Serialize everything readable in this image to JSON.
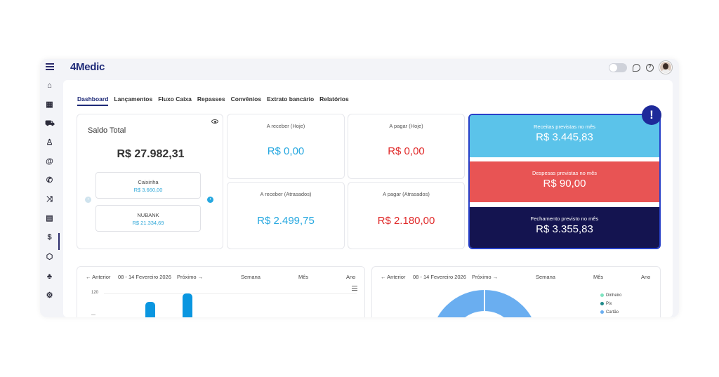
{
  "app": {
    "logo": "4Medic"
  },
  "header": {
    "help_label": "?",
    "chat_label": "…"
  },
  "sidebar": {
    "icons": [
      "home-icon",
      "calendar-icon",
      "car-icon",
      "user-icon",
      "at-icon",
      "phone-icon",
      "shuffle-icon",
      "clipboard-icon",
      "dollar-icon",
      "box-icon",
      "tree-icon",
      "gear-icon"
    ],
    "glyphs": [
      "⌂",
      "▦",
      "⛟",
      "♙",
      "@",
      "✆",
      "⤨",
      "▤",
      "$",
      "⬡",
      "♣",
      "⚙"
    ]
  },
  "tabs": [
    "Dashboard",
    "Lançamentos",
    "Fluxo Caixa",
    "Repasses",
    "Convênios",
    "Extrato bancário",
    "Relatórios"
  ],
  "saldo": {
    "title": "Saldo Total",
    "value": "R$ 27.982,31",
    "banks": [
      {
        "name": "Caixinha",
        "value": "R$ 3.660,00"
      },
      {
        "name": "NUBANK",
        "value": "R$ 21.334,69"
      }
    ]
  },
  "kpis": {
    "receber_hoje": {
      "label": "A receber (Hoje)",
      "value": "R$ 0,00"
    },
    "pagar_hoje": {
      "label": "A pagar (Hoje)",
      "value": "R$ 0,00"
    },
    "receber_atrasados": {
      "label": "A receber (Atrasados)",
      "value": "R$ 2.499,75"
    },
    "pagar_atrasados": {
      "label": "A pagar (Atrasados)",
      "value": "R$ 2.180,00"
    }
  },
  "forecast": {
    "receitas": {
      "label": "Receitas previstas no mês",
      "value": "R$ 3.445,83",
      "color": "#5bc3ea"
    },
    "despesas": {
      "label": "Despesas previstas no mês",
      "value": "R$ 90,00",
      "color": "#e85454"
    },
    "fechamento": {
      "label": "Fechamento previsto no mês",
      "value": "R$ 3.355,83",
      "color": "#141450"
    },
    "badge": "!"
  },
  "chart_left": {
    "prev": "← Anterior",
    "range": "08 - 14 Fevereiro 2026",
    "next": "Próximo →",
    "periods": [
      "Semana",
      "Mês",
      "Ano"
    ],
    "y_tick": "120"
  },
  "chart_right": {
    "prev": "← Anterior",
    "range": "08 - 14 Fevereiro 2026",
    "next": "Próximo →",
    "periods": [
      "Semana",
      "Mês",
      "Ano"
    ],
    "legend": [
      {
        "name": "Dinheiro",
        "color": "#7ee3c0"
      },
      {
        "name": "Pix",
        "color": "#1f8a8a"
      },
      {
        "name": "Cartão",
        "color": "#6aaef0"
      }
    ]
  }
}
